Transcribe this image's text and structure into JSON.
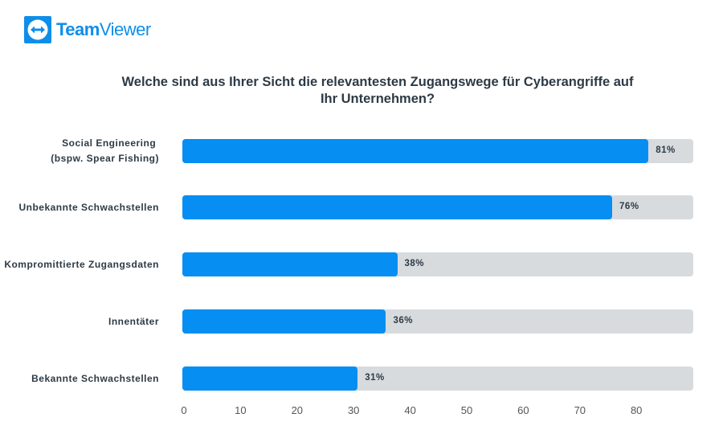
{
  "logo": {
    "brand_bold": "Team",
    "brand_light": "Viewer"
  },
  "chart_data": {
    "type": "bar",
    "orientation": "horizontal",
    "title": "Welche sind aus Ihrer Sicht die relevantesten Zugangswege für Cyberangriffe auf Ihr Unternehmen?",
    "categories": [
      "Social Engineering \n(bspw. Spear Fishing)",
      "Unbekannte Schwachstellen",
      "Kompromittierte Zugangsdaten",
      "Innentäter",
      "Bekannte Schwachstellen"
    ],
    "values": [
      81,
      76,
      38,
      36,
      31
    ],
    "value_labels": [
      "81%",
      "76%",
      "38%",
      "36%",
      "31%"
    ],
    "xticks": [
      "0",
      "10",
      "20",
      "30",
      "40",
      "50",
      "60",
      "70",
      "80"
    ],
    "xlim": [
      0,
      90
    ],
    "bar_color": "#068ef2",
    "track_color": "#d8dbde"
  }
}
